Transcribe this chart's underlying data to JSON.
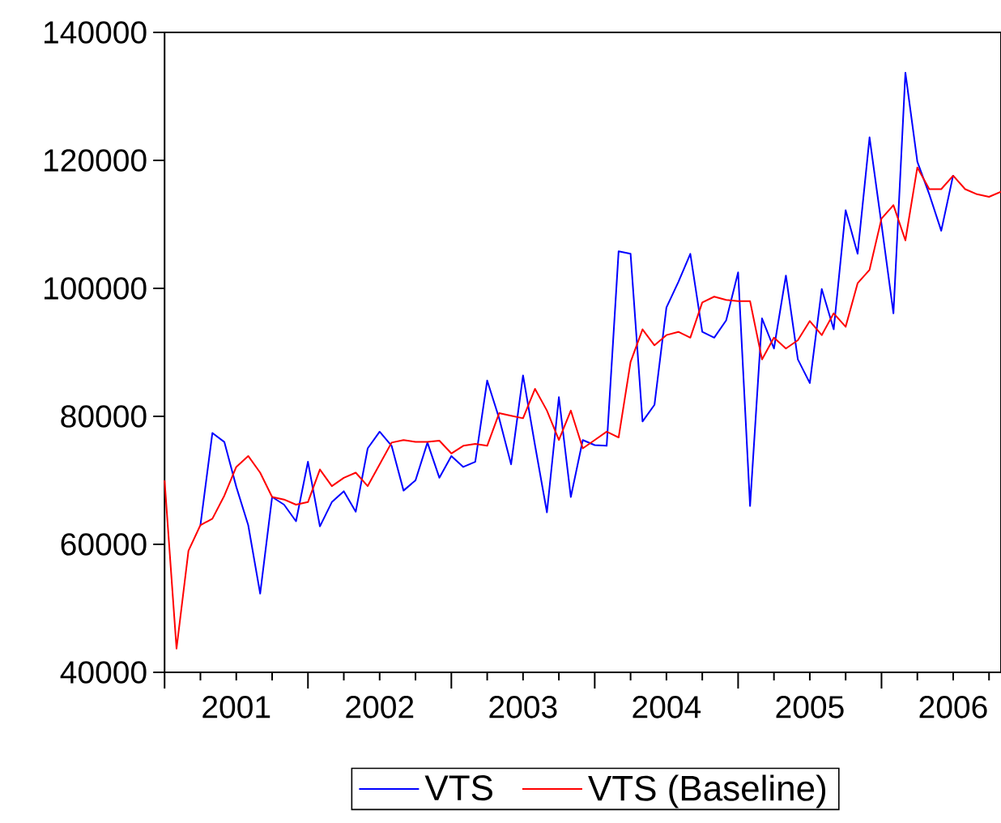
{
  "chart_data": {
    "type": "line",
    "x": [
      "2001-01",
      "2001-02",
      "2001-03",
      "2001-04",
      "2001-05",
      "2001-06",
      "2001-07",
      "2001-08",
      "2001-09",
      "2001-10",
      "2001-11",
      "2001-12",
      "2002-01",
      "2002-02",
      "2002-03",
      "2002-04",
      "2002-05",
      "2002-06",
      "2002-07",
      "2002-08",
      "2002-09",
      "2002-10",
      "2002-11",
      "2002-12",
      "2003-01",
      "2003-02",
      "2003-03",
      "2003-04",
      "2003-05",
      "2003-06",
      "2003-07",
      "2003-08",
      "2003-09",
      "2003-10",
      "2003-11",
      "2003-12",
      "2004-01",
      "2004-02",
      "2004-03",
      "2004-04",
      "2004-05",
      "2004-06",
      "2004-07",
      "2004-08",
      "2004-09",
      "2004-10",
      "2004-11",
      "2004-12",
      "2005-01",
      "2005-02",
      "2005-03",
      "2005-04",
      "2005-05",
      "2005-06",
      "2005-07",
      "2005-08",
      "2005-09",
      "2005-10",
      "2005-11",
      "2005-12",
      "2006-01",
      "2006-02",
      "2006-03",
      "2006-04",
      "2006-05",
      "2006-06",
      "2006-07",
      "2006-08",
      "2006-09",
      "2006-10",
      "2006-11"
    ],
    "xlim": [
      "2001-01",
      "2006-11"
    ],
    "xticks": [
      {
        "value": "2001-01",
        "label": null
      },
      {
        "value": "2001-04",
        "label": null
      },
      {
        "value": "2001-07",
        "label": "2001"
      },
      {
        "value": "2001-07",
        "label": null
      },
      {
        "value": "2001-10",
        "label": null
      },
      {
        "value": "2002-01",
        "label": null
      },
      {
        "value": "2002-04",
        "label": null
      },
      {
        "value": "2002-07",
        "label": "2002"
      },
      {
        "value": "2002-07",
        "label": null
      },
      {
        "value": "2002-10",
        "label": null
      },
      {
        "value": "2003-01",
        "label": null
      },
      {
        "value": "2003-04",
        "label": null
      },
      {
        "value": "2003-07",
        "label": "2003"
      },
      {
        "value": "2003-07",
        "label": null
      },
      {
        "value": "2003-10",
        "label": null
      },
      {
        "value": "2004-01",
        "label": null
      },
      {
        "value": "2004-04",
        "label": null
      },
      {
        "value": "2004-07",
        "label": "2004"
      },
      {
        "value": "2004-07",
        "label": null
      },
      {
        "value": "2004-10",
        "label": null
      },
      {
        "value": "2005-01",
        "label": null
      },
      {
        "value": "2005-04",
        "label": null
      },
      {
        "value": "2005-07",
        "label": "2005"
      },
      {
        "value": "2005-07",
        "label": null
      },
      {
        "value": "2005-10",
        "label": null
      },
      {
        "value": "2006-01",
        "label": null
      },
      {
        "value": "2006-04",
        "label": null
      },
      {
        "value": "2006-07",
        "label": "2006"
      },
      {
        "value": "2006-07",
        "label": null
      },
      {
        "value": "2006-10",
        "label": null
      }
    ],
    "ylim": [
      40000,
      140000
    ],
    "yticks": [
      40000,
      60000,
      80000,
      100000,
      120000,
      140000
    ],
    "legend": "bottom",
    "series": [
      {
        "name": "VTS",
        "color": "#0000ff",
        "values": [
          null,
          null,
          null,
          63000,
          77400,
          76000,
          69000,
          63000,
          52300,
          67400,
          66200,
          63600,
          72900,
          62800,
          66600,
          68300,
          65100,
          75000,
          77600,
          75400,
          68400,
          70000,
          75900,
          70400,
          73800,
          72100,
          72900,
          85600,
          79700,
          72500,
          86400,
          75500,
          65000,
          83000,
          67400,
          76300,
          75500,
          75400,
          105800,
          105400,
          79200,
          81800,
          97000,
          101000,
          105400,
          93200,
          92300,
          95000,
          102500,
          66000,
          95300,
          90600,
          102000,
          88900,
          85200,
          99900,
          93600,
          112200,
          105400,
          123600,
          110000,
          96100,
          133700,
          119800,
          114700,
          109000,
          117700,
          null,
          null,
          null,
          null
        ]
      },
      {
        "name": "VTS (Baseline)",
        "color": "#ff0000",
        "values": [
          70000,
          43700,
          59000,
          63000,
          64000,
          67600,
          72100,
          73800,
          71200,
          67400,
          67000,
          66200,
          66600,
          71700,
          69100,
          70400,
          71200,
          69100,
          72500,
          75900,
          76300,
          76000,
          76000,
          76200,
          74200,
          75400,
          75700,
          75400,
          80500,
          80100,
          79700,
          84300,
          80900,
          76300,
          80900,
          75000,
          76300,
          77600,
          76700,
          88500,
          93600,
          91100,
          92700,
          93200,
          92300,
          97800,
          98700,
          98200,
          98000,
          98000,
          88900,
          92300,
          90600,
          91900,
          94900,
          92700,
          96100,
          94000,
          100800,
          102900,
          110900,
          113000,
          107500,
          118900,
          115500,
          115500,
          117600,
          115500,
          114700,
          114300,
          115100
        ]
      }
    ]
  }
}
